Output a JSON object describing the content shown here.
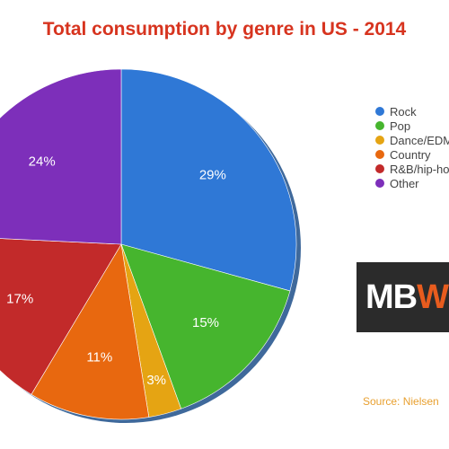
{
  "chart_data": {
    "type": "pie",
    "title": "Total consumption by genre in US - 2014",
    "categories": [
      "Rock",
      "Pop",
      "Dance/EDM",
      "Country",
      "R&B/hip-hop",
      "Other"
    ],
    "values": [
      29,
      15,
      3,
      11,
      17,
      24
    ],
    "value_labels": [
      "29%",
      "15%",
      "3%",
      "11%",
      "17%",
      "24%"
    ],
    "colors": [
      "#2f78d6",
      "#46b52e",
      "#e5a413",
      "#e8680f",
      "#c22a2a",
      "#7d2fba"
    ],
    "legend_position": "right",
    "legend": [
      "Rock",
      "Pop",
      "Dance/EDM",
      "Country",
      "R&B/hip-hop",
      "Other"
    ]
  },
  "logo": {
    "part1": "MB",
    "part2": "W"
  },
  "source": "Source: Nielsen"
}
